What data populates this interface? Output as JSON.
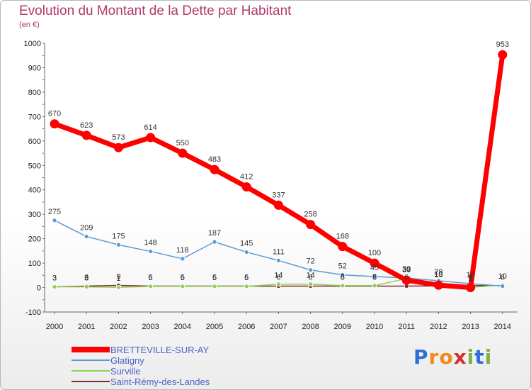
{
  "chart_data": {
    "type": "line",
    "title": "Evolution du Montant de la Dette par Habitant",
    "subtitle": "(en €)",
    "x": [
      "2000",
      "2001",
      "2002",
      "2003",
      "2004",
      "2005",
      "2006",
      "2007",
      "2008",
      "2009",
      "2010",
      "2011",
      "2012",
      "2013",
      "2014"
    ],
    "ylim": [
      -100,
      1000
    ],
    "yticks": [
      -100,
      0,
      100,
      200,
      300,
      400,
      500,
      600,
      700,
      800,
      900,
      1000
    ],
    "grid": false,
    "legend_position": "bottom-left",
    "series": [
      {
        "name": "BRETTEVILLE-SUR-AY",
        "color": "#ff0000",
        "values": [
          670,
          623,
          573,
          614,
          550,
          483,
          412,
          337,
          258,
          168,
          100,
          30,
          10,
          0,
          953
        ],
        "labels": [
          "670",
          "623",
          "573",
          "614",
          "550",
          "483",
          "412",
          "337",
          "258",
          "168",
          "100",
          "30",
          "10",
          "0",
          "953"
        ]
      },
      {
        "name": "Glatigny",
        "color": "#5b9bd5",
        "values": [
          275,
          209,
          175,
          148,
          118,
          187,
          145,
          111,
          72,
          52,
          45,
          39,
          28,
          16,
          6
        ],
        "labels": [
          "275",
          "209",
          "175",
          "148",
          "118",
          "187",
          "145",
          "111",
          "72",
          "52",
          "45",
          "39",
          "28",
          "16",
          "6"
        ]
      },
      {
        "name": "Surville",
        "color": "#92d050",
        "values": [
          3,
          3,
          1,
          5,
          5,
          5,
          5,
          14,
          14,
          8,
          8,
          37,
          19,
          1,
          10
        ],
        "labels": [
          "3",
          "3",
          "1",
          "5",
          "5",
          "5",
          "5",
          "14",
          "14",
          "8",
          "8",
          "37",
          "19",
          "1",
          "10"
        ]
      },
      {
        "name": "Saint-Rémy-des-Landes",
        "color": "#7b2c2c",
        "values": [
          3,
          6,
          9,
          6,
          6,
          6,
          6,
          6,
          6,
          6,
          6,
          6,
          7,
          8,
          8
        ],
        "labels": [
          "3",
          "6",
          "9",
          "6",
          "6",
          "6",
          "6",
          "6",
          "6",
          "6",
          "6",
          "6",
          "",
          "",
          ""
        ]
      }
    ]
  },
  "logo": {
    "letters": [
      "P",
      "r",
      "o",
      "x",
      "i",
      "t",
      "i"
    ],
    "colors": [
      "#2e6fd6",
      "#f08a1c",
      "#f08a1c",
      "#d32f2f",
      "#7cb342",
      "#2e6fd6",
      "#7cb342"
    ]
  }
}
